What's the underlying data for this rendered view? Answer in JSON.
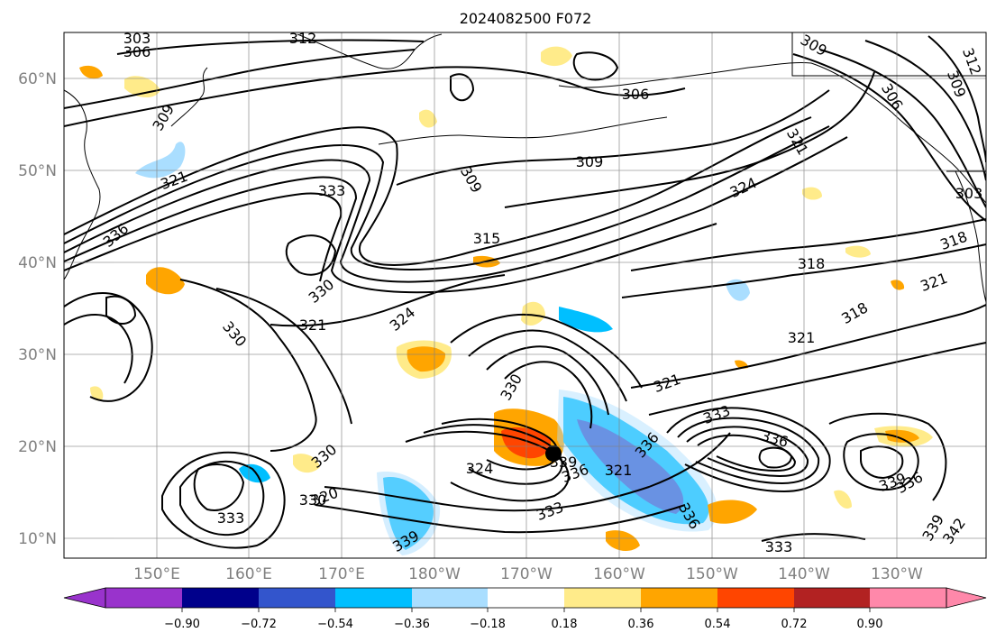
{
  "title": "2024082500 F072",
  "map": {
    "lat_labels": [
      "60°N",
      "50°N",
      "40°N",
      "30°N",
      "20°N",
      "10°N"
    ],
    "lon_labels": [
      "150°E",
      "160°E",
      "170°E",
      "180°W",
      "170°W",
      "160°W",
      "150°W",
      "140°W",
      "130°W"
    ],
    "contour_labels": [
      "303",
      "312",
      "306",
      "309",
      "306",
      "309",
      "306",
      "312",
      "309",
      "321",
      "309",
      "333",
      "309",
      "324",
      "321",
      "336",
      "315",
      "330",
      "318",
      "318",
      "321",
      "324",
      "330",
      "321",
      "330",
      "318",
      "321",
      "321",
      "333",
      "336",
      "330",
      "339",
      "324",
      "321",
      "336",
      "336",
      "339",
      "330",
      "320",
      "333",
      "333",
      "336",
      "336",
      "339",
      "339",
      "342",
      "333",
      "303"
    ],
    "cyclone_marker": "black dot"
  },
  "colorbar": {
    "tick_labels": [
      "−0.90",
      "−0.72",
      "−0.54",
      "−0.36",
      "−0.18",
      "0.18",
      "0.36",
      "0.54",
      "0.72",
      "0.90"
    ],
    "colors": [
      "#9933cc",
      "#00008b",
      "#3355cc",
      "#00bfff",
      "#aadeff",
      "#ffffff",
      "#ffeb8a",
      "#ffa500",
      "#ff4500",
      "#b22222",
      "#ff88aa"
    ]
  }
}
